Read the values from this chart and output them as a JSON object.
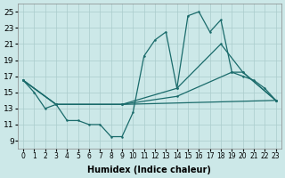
{
  "bg_color": "#cce8e8",
  "line_color": "#1a6b6b",
  "grid_color": "#aacccc",
  "xlabel": "Humidex (Indice chaleur)",
  "xlim": [
    -0.5,
    23.5
  ],
  "ylim": [
    8,
    26
  ],
  "yticks": [
    9,
    11,
    13,
    15,
    17,
    19,
    21,
    23,
    25
  ],
  "xticks": [
    0,
    1,
    2,
    3,
    4,
    5,
    6,
    7,
    8,
    9,
    10,
    11,
    12,
    13,
    14,
    15,
    16,
    17,
    18,
    19,
    20,
    21,
    22,
    23
  ],
  "line1_x": [
    0,
    1,
    2,
    3,
    4,
    5,
    6,
    7,
    8,
    9,
    10,
    11,
    12,
    13,
    14,
    15,
    16,
    17,
    18,
    19,
    20,
    21,
    22,
    23
  ],
  "line1_y": [
    16.5,
    15.0,
    13.0,
    13.5,
    11.5,
    11.5,
    11.0,
    11.0,
    9.5,
    9.5,
    12.5,
    19.5,
    21.5,
    22.5,
    15.5,
    24.5,
    25.0,
    22.5,
    24.0,
    17.5,
    17.0,
    16.5,
    15.5,
    14.0
  ],
  "line2_x": [
    0,
    3,
    9,
    14,
    18,
    20,
    23
  ],
  "line2_y": [
    16.5,
    13.5,
    13.5,
    15.5,
    21.0,
    17.5,
    14.0
  ],
  "line3_x": [
    0,
    3,
    9,
    14,
    19,
    20,
    23
  ],
  "line3_y": [
    16.5,
    13.5,
    13.5,
    14.5,
    17.5,
    17.5,
    14.0
  ],
  "line4_x": [
    0,
    3,
    9,
    23
  ],
  "line4_y": [
    16.5,
    13.5,
    13.5,
    14.0
  ]
}
